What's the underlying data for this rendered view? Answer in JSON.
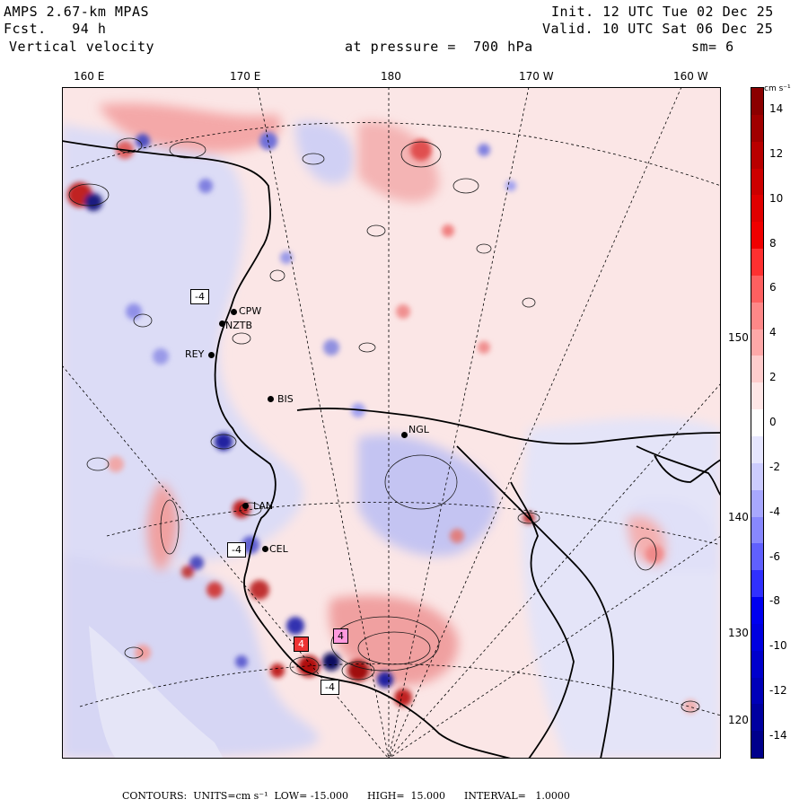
{
  "header": {
    "model": "AMPS 2.67-km MPAS",
    "forecast": "Fcst.   94 h",
    "field": "Vertical velocity",
    "init": "Init. 12 UTC Tue 02 Dec 25",
    "valid": "Valid. 10 UTC Sat 06 Dec 25",
    "pressure": "at pressure =  700 hPa",
    "smoothing": "sm= 6"
  },
  "map": {
    "lon_labels": [
      "160 E",
      "170 E",
      "180",
      "170 W",
      "160 W"
    ],
    "lat_labels": [
      "150 W",
      "140 W",
      "130 W",
      "120 W"
    ],
    "stations": [
      "CPW",
      "NZTB",
      "REY",
      "BIS",
      "NGL",
      "LAN",
      "CEL"
    ],
    "highs_lows": [
      "-4",
      "-4",
      "-4",
      "4",
      "4"
    ]
  },
  "colorbar": {
    "unit": "cm s⁻¹",
    "ticks": [
      "14",
      "12",
      "10",
      "8",
      "6",
      "4",
      "2",
      "0",
      "-2",
      "-4",
      "-6",
      "-8",
      "-10",
      "-12",
      "-14"
    ],
    "colors": [
      "#8b0000",
      "#a00000",
      "#b80000",
      "#cc0000",
      "#e00000",
      "#f00000",
      "#ff3030",
      "#ff6060",
      "#ff8888",
      "#ffa8a8",
      "#ffcccc",
      "#ffe6e6",
      "#ffffff",
      "#e6e6ff",
      "#ccccff",
      "#a8a8ff",
      "#8888ff",
      "#6060ff",
      "#3030ff",
      "#0000f0",
      "#0000e0",
      "#0000cc",
      "#0000b8",
      "#0000a0",
      "#00008b"
    ]
  },
  "footer": "CONTOURS:  UNITS=cm s⁻¹  LOW= -15.000      HIGH=  15.000      INTERVAL=   1.0000"
}
